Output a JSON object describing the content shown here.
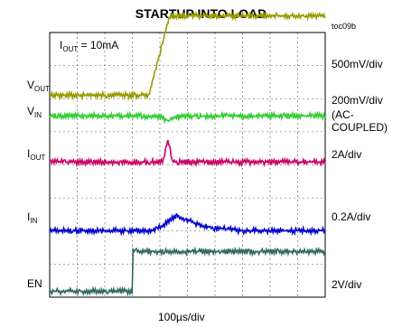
{
  "title": "STARTUP INTO LOAD",
  "figure_id": "toc09b",
  "annotation": {
    "prefix": "I",
    "sub": "OUT",
    "text": " = 10mA"
  },
  "x_scale": "100µs/div",
  "channels": [
    {
      "id": "vout",
      "name": "V",
      "sub": "OUT",
      "scale": "500mV/div",
      "color": "#999900"
    },
    {
      "id": "vin",
      "name": "V",
      "sub": "IN",
      "scale": "200mV/div",
      "scale_note_1": "(AC-",
      "scale_note_2": "COUPLED)",
      "color": "#33cc33"
    },
    {
      "id": "iout",
      "name": "I",
      "sub": "OUT",
      "scale": "2A/div",
      "color": "#cc0066"
    },
    {
      "id": "iin",
      "name": "I",
      "sub": "IN",
      "scale": "0.2A/div",
      "color": "#0000cc"
    },
    {
      "id": "en",
      "name": "EN",
      "sub": "",
      "scale": "2V/div",
      "color": "#336666"
    }
  ],
  "chart_data": {
    "type": "line",
    "title": "STARTUP INTO LOAD",
    "x_unit": "µs",
    "x_range": [
      0,
      1000
    ],
    "grid": true,
    "grid_divisions": [
      10,
      8
    ],
    "series": [
      {
        "name": "VOUT",
        "scale": "500mV/div",
        "x": [
          0,
          360,
          435,
          1000
        ],
        "y_div": [
          0,
          0,
          2.4,
          2.4
        ]
      },
      {
        "name": "VIN",
        "scale": "200mV/div",
        "x": [
          0,
          400,
          430,
          470,
          1000
        ],
        "y_div": [
          0,
          0,
          -0.15,
          0,
          0
        ]
      },
      {
        "name": "IOUT",
        "scale": "2A/div",
        "x": [
          0,
          410,
          430,
          445,
          1000
        ],
        "y_div": [
          0,
          0,
          0.7,
          0,
          0
        ]
      },
      {
        "name": "IIN",
        "scale": "0.2A/div",
        "x": [
          0,
          380,
          460,
          560,
          700,
          1000
        ],
        "y_div": [
          0,
          0,
          0.45,
          0.12,
          0,
          0
        ]
      },
      {
        "name": "EN",
        "scale": "2V/div",
        "x": [
          0,
          300,
          300,
          1000
        ],
        "y_div": [
          0,
          0,
          1.2,
          1.2
        ]
      }
    ]
  }
}
